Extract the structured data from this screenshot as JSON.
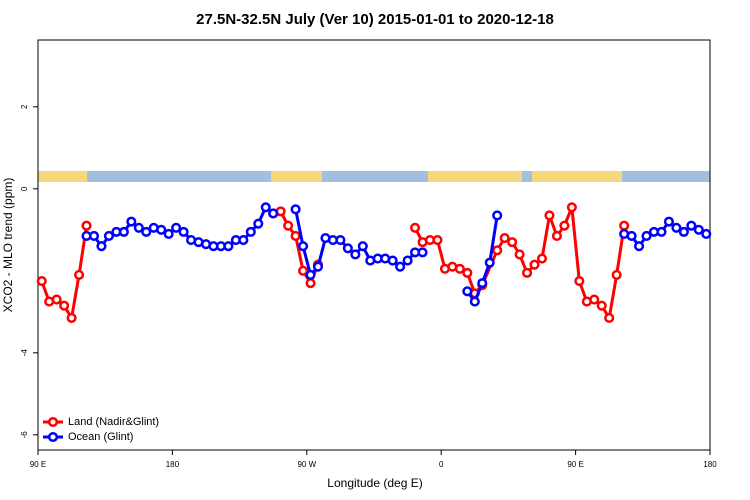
{
  "chart_data": {
    "type": "line",
    "title": "27.5N-32.5N July (Ver 10)   2015-01-01 to 2020-12-18",
    "x_label": "Longitude (deg E)",
    "y_label": "XCO2 - MLO trend (ppm)",
    "xlim": [
      90,
      540
    ],
    "xticks": [
      {
        "value": 90,
        "label": "90 E"
      },
      180,
      {
        "value": 270,
        "label": "90 W"
      },
      {
        "value": 360,
        "label": "0"
      },
      {
        "value": 450,
        "label": "90 E"
      },
      {
        "value": 540,
        "label": "180"
      }
    ],
    "ylim": [
      -6.37,
      3.63
    ],
    "yticks": [
      2,
      0,
      -4,
      -6
    ],
    "legend": "bottom-left",
    "series": [
      {
        "name": "Land (Nadir&Glint)",
        "color": "#ff0000",
        "x": [
          92.5,
          97.5,
          102.5,
          107.5,
          112.5,
          117.5,
          122.5,
          127.5,
          247.5,
          252.5,
          257.5,
          262.5,
          267.5,
          272.5,
          277.5,
          282.5,
          342.5,
          347.5,
          352.5,
          357.5,
          362.5,
          367.5,
          372.5,
          377.5,
          382.5,
          387.5,
          397.5,
          402.5,
          407.5,
          412.5,
          417.5,
          422.5,
          427.5,
          432.5,
          437.5,
          442.5,
          447.5,
          452.5,
          457.5,
          462.5,
          467.5,
          472.5,
          477.5,
          482.5
        ],
        "values": [
          -2.25,
          -2.75,
          -2.7,
          -2.85,
          -3.15,
          -2.1,
          -0.9,
          null,
          -0.6,
          -0.55,
          -0.9,
          -1.15,
          -2.0,
          -2.3,
          -1.85,
          null,
          -0.95,
          -1.3,
          -1.25,
          -1.25,
          -1.95,
          -1.9,
          -1.95,
          -2.05,
          -2.55,
          -2.35,
          -1.5,
          -1.2,
          -1.3,
          -1.6,
          -2.05,
          -1.85,
          -1.7,
          -0.65,
          -1.15,
          -0.9,
          -0.45,
          -2.25,
          -2.75,
          -2.7,
          -2.85,
          -3.15,
          -2.1,
          -0.9
        ]
      },
      {
        "name": "Ocean (Glint)",
        "color": "#0000ff",
        "x": [
          122.5,
          127.5,
          132.5,
          137.5,
          142.5,
          147.5,
          152.5,
          157.5,
          162.5,
          167.5,
          172.5,
          177.5,
          182.5,
          187.5,
          192.5,
          197.5,
          202.5,
          207.5,
          212.5,
          217.5,
          222.5,
          227.5,
          232.5,
          237.5,
          242.5,
          247.5,
          252.5,
          262.5,
          267.5,
          272.5,
          277.5,
          282.5,
          287.5,
          292.5,
          297.5,
          302.5,
          307.5,
          312.5,
          317.5,
          322.5,
          327.5,
          332.5,
          337.5,
          342.5,
          347.5,
          352.5,
          377.5,
          382.5,
          387.5,
          392.5,
          397.5,
          402.5,
          482.5,
          487.5,
          492.5,
          497.5,
          502.5,
          507.5,
          512.5,
          517.5,
          522.5,
          527.5,
          532.5,
          537.5
        ],
        "values": [
          -1.15,
          -1.15,
          -1.4,
          -1.15,
          -1.05,
          -1.05,
          -0.8,
          -0.95,
          -1.05,
          -0.95,
          -1.0,
          -1.1,
          -0.95,
          -1.05,
          -1.25,
          -1.3,
          -1.35,
          -1.4,
          -1.4,
          -1.4,
          -1.25,
          -1.25,
          -1.05,
          -0.85,
          -0.45,
          -0.6,
          null,
          -0.5,
          -1.4,
          -2.1,
          -1.9,
          -1.2,
          -1.25,
          -1.25,
          -1.45,
          -1.6,
          -1.4,
          -1.75,
          -1.7,
          -1.7,
          -1.75,
          -1.9,
          -1.75,
          -1.55,
          -1.55,
          null,
          -2.5,
          -2.75,
          -2.3,
          -1.8,
          -0.65,
          null,
          -1.1,
          -1.15,
          -1.4,
          -1.15,
          -1.05,
          -1.05,
          -0.8,
          -0.95,
          -1.05,
          -0.9,
          -1.0,
          -1.1
        ]
      }
    ]
  }
}
